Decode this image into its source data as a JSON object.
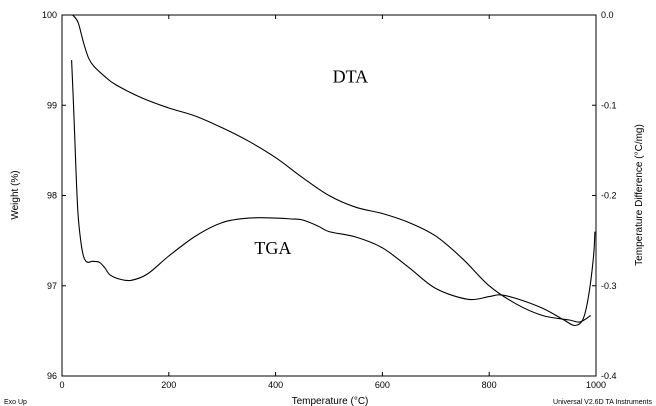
{
  "chart_data": {
    "type": "line",
    "title": "",
    "xlabel": "Temperature (°C)",
    "ylabel": "Weight (%)",
    "y2label": "Temperature Difference (°C/mg)",
    "xlim": [
      0,
      1000
    ],
    "ylim": [
      96,
      100
    ],
    "y2lim": [
      -0.4,
      0.0
    ],
    "x_ticks": [
      "0",
      "200",
      "400",
      "600",
      "800",
      "1000"
    ],
    "y_ticks": [
      "96",
      "97",
      "98",
      "99",
      "100"
    ],
    "y2_ticks": [
      "-0.4",
      "-0.3",
      "-0.2",
      "-0.1",
      "0.0"
    ],
    "grid": false,
    "annotations": [
      {
        "text": "DTA",
        "x": 540,
        "y": 99.25
      },
      {
        "text": "TGA",
        "x": 395,
        "y": 97.35
      }
    ],
    "corner_notes": {
      "left": "Exo Up",
      "right": "Universal V2.6D TA Instruments"
    },
    "series": [
      {
        "axis": "y2",
        "x": [
          20,
          30,
          40,
          50,
          60,
          80,
          100,
          150,
          200,
          250,
          300,
          350,
          400,
          450,
          500,
          550,
          600,
          650,
          700,
          750,
          800,
          850,
          900,
          950,
          970,
          990
        ],
        "values": [
          0.0,
          -0.008,
          -0.03,
          -0.048,
          -0.057,
          -0.068,
          -0.077,
          -0.092,
          -0.103,
          -0.112,
          -0.125,
          -0.14,
          -0.158,
          -0.18,
          -0.2,
          -0.213,
          -0.22,
          -0.23,
          -0.245,
          -0.27,
          -0.3,
          -0.32,
          -0.333,
          -0.338,
          -0.34,
          -0.333
        ]
      },
      {
        "axis": "y",
        "x": [
          18,
          22,
          26,
          30,
          35,
          40,
          45,
          50,
          55,
          60,
          70,
          80,
          90,
          110,
          130,
          160,
          200,
          250,
          300,
          350,
          400,
          430,
          450,
          480,
          500,
          550,
          600,
          650,
          700,
          760,
          800,
          820,
          850,
          900,
          940,
          960,
          975,
          985,
          995,
          998
        ],
        "values": [
          99.5,
          98.95,
          98.3,
          97.8,
          97.5,
          97.33,
          97.27,
          97.26,
          97.27,
          97.27,
          97.26,
          97.2,
          97.12,
          97.07,
          97.06,
          97.13,
          97.33,
          97.55,
          97.7,
          97.75,
          97.75,
          97.74,
          97.73,
          97.66,
          97.6,
          97.54,
          97.42,
          97.2,
          96.97,
          96.85,
          96.88,
          96.9,
          96.86,
          96.75,
          96.62,
          96.56,
          96.62,
          96.85,
          97.3,
          97.6
        ]
      }
    ]
  }
}
